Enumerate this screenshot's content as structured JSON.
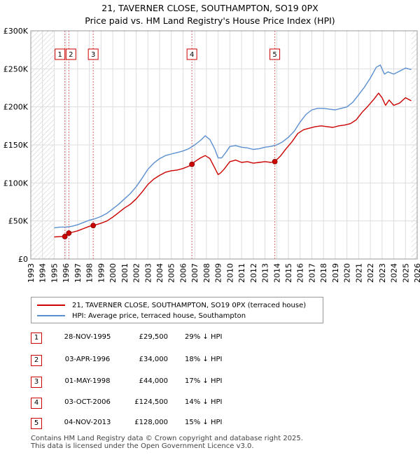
{
  "title_line1": "21, TAVERNER CLOSE, SOUTHAMPTON, SO19 0PX",
  "title_line2": "Price paid vs. HM Land Registry's House Price Index (HPI)",
  "chart_data": {
    "type": "line",
    "title": "21, TAVERNER CLOSE, SOUTHAMPTON, SO19 0PX — Price paid vs. HM Land Registry's House Price Index (HPI)",
    "xlim": [
      1993,
      2026
    ],
    "ylim": [
      0,
      300000
    ],
    "y_ticks": [
      0,
      50000,
      100000,
      150000,
      200000,
      250000,
      300000
    ],
    "y_tick_labels": [
      "£0",
      "£50K",
      "£100K",
      "£150K",
      "£200K",
      "£250K",
      "£300K"
    ],
    "x_ticks": [
      1993,
      1994,
      1995,
      1996,
      1997,
      1998,
      1999,
      2000,
      2001,
      2002,
      2003,
      2004,
      2005,
      2006,
      2007,
      2008,
      2009,
      2010,
      2011,
      2012,
      2013,
      2014,
      2015,
      2016,
      2017,
      2018,
      2019,
      2020,
      2021,
      2022,
      2023,
      2024,
      2025,
      2026
    ],
    "data_start": 1995.0,
    "data_end": 2025.5,
    "series": [
      {
        "name": "21, TAVERNER CLOSE, SOUTHAMPTON, SO19 0PX (terraced house)",
        "color": "#cc0000",
        "x": [
          1995.0,
          1995.5,
          1995.9,
          1996.25,
          1996.5,
          1997.0,
          1997.5,
          1998.0,
          1998.33,
          1999.0,
          1999.5,
          2000.0,
          2000.5,
          2001.0,
          2001.5,
          2002.0,
          2002.5,
          2003.0,
          2003.5,
          2004.0,
          2004.5,
          2005.0,
          2005.5,
          2006.0,
          2006.5,
          2006.76,
          2007.0,
          2007.5,
          2007.9,
          2008.3,
          2008.7,
          2009.0,
          2009.2,
          2009.5,
          2010.0,
          2010.5,
          2011.0,
          2011.5,
          2012.0,
          2012.5,
          2013.0,
          2013.5,
          2013.84,
          2014.3,
          2014.8,
          2015.3,
          2015.8,
          2016.3,
          2016.8,
          2017.3,
          2017.8,
          2018.3,
          2018.8,
          2019.3,
          2019.8,
          2020.3,
          2020.8,
          2021.3,
          2021.8,
          2022.3,
          2022.7,
          2023.0,
          2023.3,
          2023.6,
          2024.0,
          2024.5,
          2025.0,
          2025.5
        ],
        "values": [
          29000,
          29500,
          29500,
          34000,
          35000,
          37000,
          40000,
          43000,
          44000,
          47000,
          50000,
          55000,
          61000,
          67000,
          72000,
          79000,
          88000,
          98000,
          105000,
          110000,
          114000,
          116000,
          117000,
          119000,
          122000,
          124500,
          128000,
          133000,
          136000,
          132000,
          120000,
          111000,
          113000,
          118000,
          128000,
          130000,
          127000,
          128000,
          126000,
          127000,
          128000,
          127000,
          128000,
          135000,
          145000,
          154000,
          165000,
          170000,
          172000,
          174000,
          175000,
          174000,
          173000,
          175000,
          176000,
          178000,
          183000,
          193000,
          201000,
          210000,
          218000,
          212000,
          202000,
          209000,
          202000,
          205000,
          212000,
          208000
        ]
      },
      {
        "name": "HPI: Average price, terraced house, Southampton",
        "color": "#5b8fd0",
        "x": [
          1995.0,
          1995.5,
          1996.0,
          1996.5,
          1997.0,
          1997.5,
          1998.0,
          1998.5,
          1999.0,
          1999.5,
          2000.0,
          2000.5,
          2001.0,
          2001.5,
          2002.0,
          2002.5,
          2003.0,
          2003.5,
          2004.0,
          2004.5,
          2005.0,
          2005.5,
          2006.0,
          2006.5,
          2007.0,
          2007.5,
          2007.9,
          2008.3,
          2008.7,
          2009.0,
          2009.3,
          2009.7,
          2010.0,
          2010.5,
          2011.0,
          2011.5,
          2012.0,
          2012.5,
          2013.0,
          2013.5,
          2014.0,
          2014.5,
          2015.0,
          2015.5,
          2016.0,
          2016.5,
          2017.0,
          2017.5,
          2018.0,
          2018.5,
          2019.0,
          2019.5,
          2020.0,
          2020.5,
          2021.0,
          2021.5,
          2022.0,
          2022.5,
          2022.85,
          2023.2,
          2023.5,
          2024.0,
          2024.5,
          2025.0,
          2025.5
        ],
        "values": [
          41000,
          42000,
          42000,
          43000,
          45000,
          48000,
          51000,
          53000,
          56000,
          60000,
          66000,
          72000,
          79000,
          86000,
          95000,
          106000,
          118000,
          126000,
          132000,
          136000,
          138000,
          140000,
          142000,
          145000,
          150000,
          156000,
          162000,
          157000,
          145000,
          133000,
          133000,
          141000,
          148000,
          149000,
          147000,
          146000,
          144000,
          145000,
          147000,
          148000,
          150000,
          154000,
          160000,
          168000,
          180000,
          190000,
          196000,
          198000,
          198000,
          197000,
          196000,
          198000,
          200000,
          206000,
          216000,
          226000,
          238000,
          252000,
          255000,
          243000,
          246000,
          243000,
          247000,
          251000,
          249000
        ]
      }
    ],
    "sales": [
      {
        "label": "1",
        "x": 1995.91,
        "value": 29500
      },
      {
        "label": "2",
        "x": 1996.25,
        "value": 34000
      },
      {
        "label": "3",
        "x": 1998.33,
        "value": 44000
      },
      {
        "label": "4",
        "x": 2006.76,
        "value": 124500
      },
      {
        "label": "5",
        "x": 2013.84,
        "value": 128000
      }
    ]
  },
  "legend": {
    "property": "21, TAVERNER CLOSE, SOUTHAMPTON, SO19 0PX (terraced house)",
    "hpi": "HPI: Average price, terraced house, Southampton"
  },
  "transactions": [
    {
      "num": "1",
      "date": "28-NOV-1995",
      "price": "£29,500",
      "hpi": "29% ↓ HPI"
    },
    {
      "num": "2",
      "date": "03-APR-1996",
      "price": "£34,000",
      "hpi": "18% ↓ HPI"
    },
    {
      "num": "3",
      "date": "01-MAY-1998",
      "price": "£44,000",
      "hpi": "17% ↓ HPI"
    },
    {
      "num": "4",
      "date": "03-OCT-2006",
      "price": "£124,500",
      "hpi": "14% ↓ HPI"
    },
    {
      "num": "5",
      "date": "04-NOV-2013",
      "price": "£128,000",
      "hpi": "15% ↓ HPI"
    }
  ],
  "footer_line1": "Contains HM Land Registry data © Crown copyright and database right 2025.",
  "footer_line2": "This data is licensed under the Open Government Licence v3.0."
}
